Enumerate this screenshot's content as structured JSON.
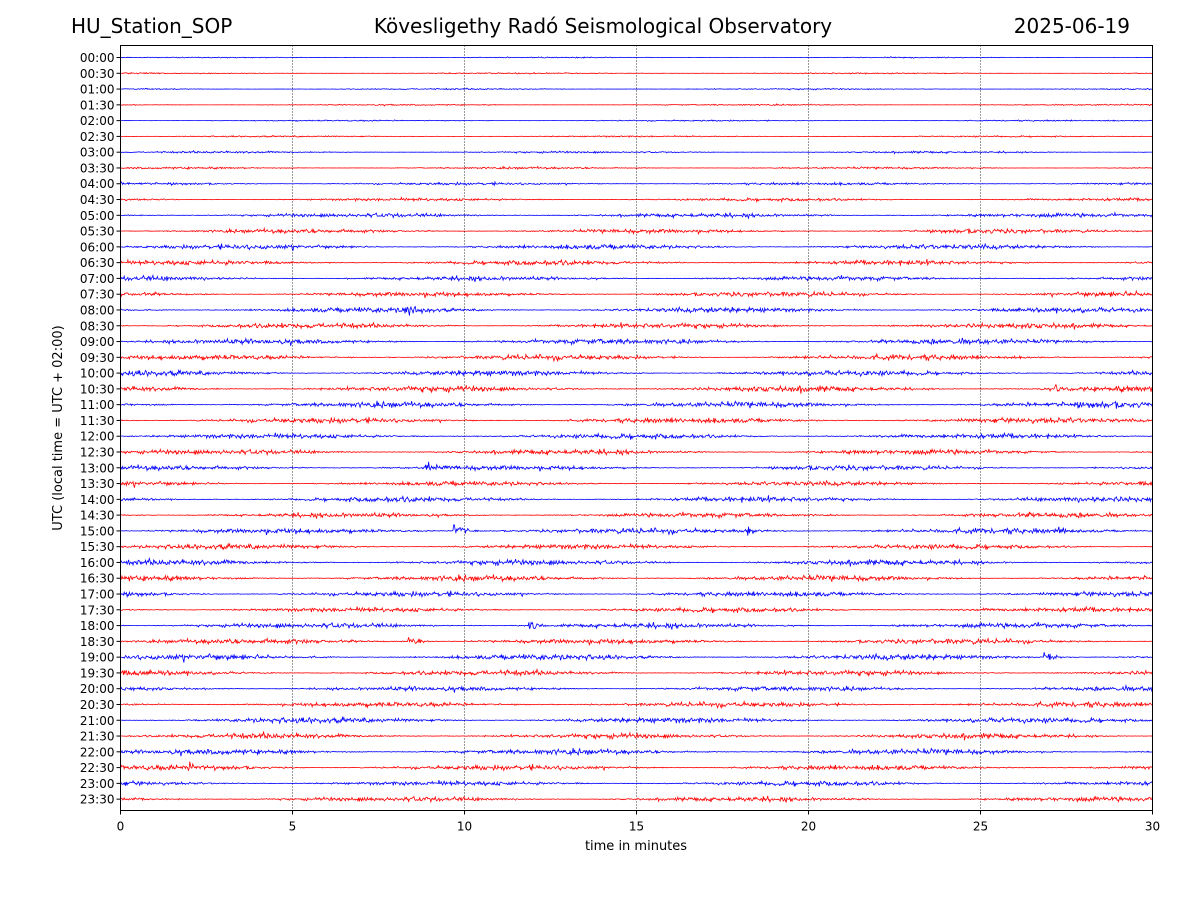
{
  "header": {
    "station": "HU_Station_SOP",
    "observatory": "Kövesligethy Radó Seismological Observatory",
    "date": "2025-06-19"
  },
  "chart_data": {
    "type": "line",
    "title": "Kövesligethy Radó Seismological Observatory",
    "xlabel": "time in minutes",
    "ylabel": "UTC (local time = UTC + 02:00)",
    "xlim": [
      0,
      30
    ],
    "xticks": [
      0,
      5,
      10,
      15,
      20,
      25,
      30
    ],
    "grid": "vertical dotted at x ticks",
    "row_labels": [
      "00:00",
      "00:30",
      "01:00",
      "01:30",
      "02:00",
      "02:30",
      "03:00",
      "03:30",
      "04:00",
      "04:30",
      "05:00",
      "05:30",
      "06:00",
      "06:30",
      "07:00",
      "07:30",
      "08:00",
      "08:30",
      "09:00",
      "09:30",
      "10:00",
      "10:30",
      "11:00",
      "11:30",
      "12:00",
      "12:30",
      "13:00",
      "13:30",
      "14:00",
      "14:30",
      "15:00",
      "15:30",
      "16:00",
      "16:30",
      "17:00",
      "17:30",
      "18:00",
      "18:30",
      "19:00",
      "19:30",
      "20:00",
      "20:30",
      "21:00",
      "21:30",
      "22:00",
      "22:30",
      "23:00",
      "23:30"
    ],
    "row_colors": [
      "#0000ff",
      "#ff0000"
    ],
    "noise_levels": [
      0.15,
      0.18,
      0.2,
      0.2,
      0.2,
      0.22,
      0.3,
      0.3,
      0.4,
      0.45,
      0.6,
      0.6,
      0.7,
      0.7,
      0.65,
      0.7,
      0.75,
      0.75,
      0.8,
      0.8,
      0.8,
      0.85,
      0.8,
      0.8,
      0.75,
      0.75,
      0.7,
      0.65,
      0.75,
      0.7,
      0.8,
      0.75,
      0.8,
      0.8,
      0.75,
      0.7,
      0.75,
      0.75,
      0.8,
      0.75,
      0.7,
      0.75,
      0.8,
      0.75,
      0.8,
      0.75,
      0.7,
      0.7
    ],
    "events": [
      {
        "row": "08:00",
        "minute": 8.3,
        "amplitude": 2.0
      },
      {
        "row": "13:00",
        "minute": 8.9,
        "amplitude": 1.8
      },
      {
        "row": "15:00",
        "minute": 9.7,
        "amplitude": 3.2
      },
      {
        "row": "15:00",
        "minute": 18.2,
        "amplitude": 1.6
      },
      {
        "row": "15:00",
        "minute": 27.3,
        "amplitude": 1.6
      },
      {
        "row": "18:00",
        "minute": 11.9,
        "amplitude": 1.8
      },
      {
        "row": "18:30",
        "minute": 8.4,
        "amplitude": 1.8
      },
      {
        "row": "19:00",
        "minute": 26.9,
        "amplitude": 1.8
      },
      {
        "row": "22:30",
        "minute": 2.0,
        "amplitude": 1.8
      },
      {
        "row": "10:30",
        "minute": 27.2,
        "amplitude": 1.6
      }
    ]
  }
}
